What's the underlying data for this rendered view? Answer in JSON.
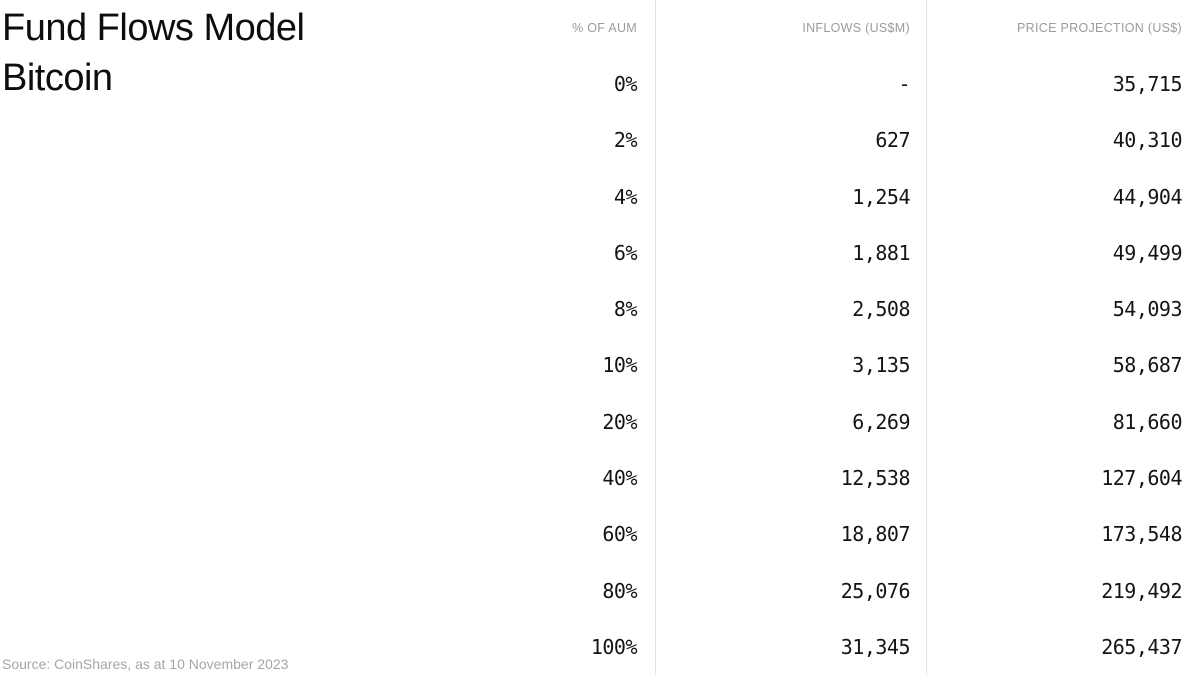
{
  "title": {
    "line1": "Fund Flows Model",
    "line2": "Bitcoin"
  },
  "chart_data": {
    "type": "table",
    "title": "Fund Flows Model Bitcoin",
    "columns": [
      "% OF AUM",
      "INFLOWS (US$M)",
      "PRICE PROJECTION (US$)"
    ],
    "rows": [
      {
        "aum": "0%",
        "inflows": "-",
        "price": "35,715"
      },
      {
        "aum": "2%",
        "inflows": "627",
        "price": "40,310"
      },
      {
        "aum": "4%",
        "inflows": "1,254",
        "price": "44,904"
      },
      {
        "aum": "6%",
        "inflows": "1,881",
        "price": "49,499"
      },
      {
        "aum": "8%",
        "inflows": "2,508",
        "price": "54,093"
      },
      {
        "aum": "10%",
        "inflows": "3,135",
        "price": "58,687"
      },
      {
        "aum": "20%",
        "inflows": "6,269",
        "price": "81,660"
      },
      {
        "aum": "40%",
        "inflows": "12,538",
        "price": "127,604"
      },
      {
        "aum": "60%",
        "inflows": "18,807",
        "price": "173,548"
      },
      {
        "aum": "80%",
        "inflows": "25,076",
        "price": "219,492"
      },
      {
        "aum": "100%",
        "inflows": "31,345",
        "price": "265,437"
      }
    ],
    "source": "Source: CoinShares, as at 10 November 2023"
  },
  "colors": {
    "background": "#ffffff",
    "title_text": "#0d0d0d",
    "header_text": "#9b9b9b",
    "data_text": "#141414",
    "divider": "#e2e2e2",
    "source_text": "#a6a6a6"
  }
}
